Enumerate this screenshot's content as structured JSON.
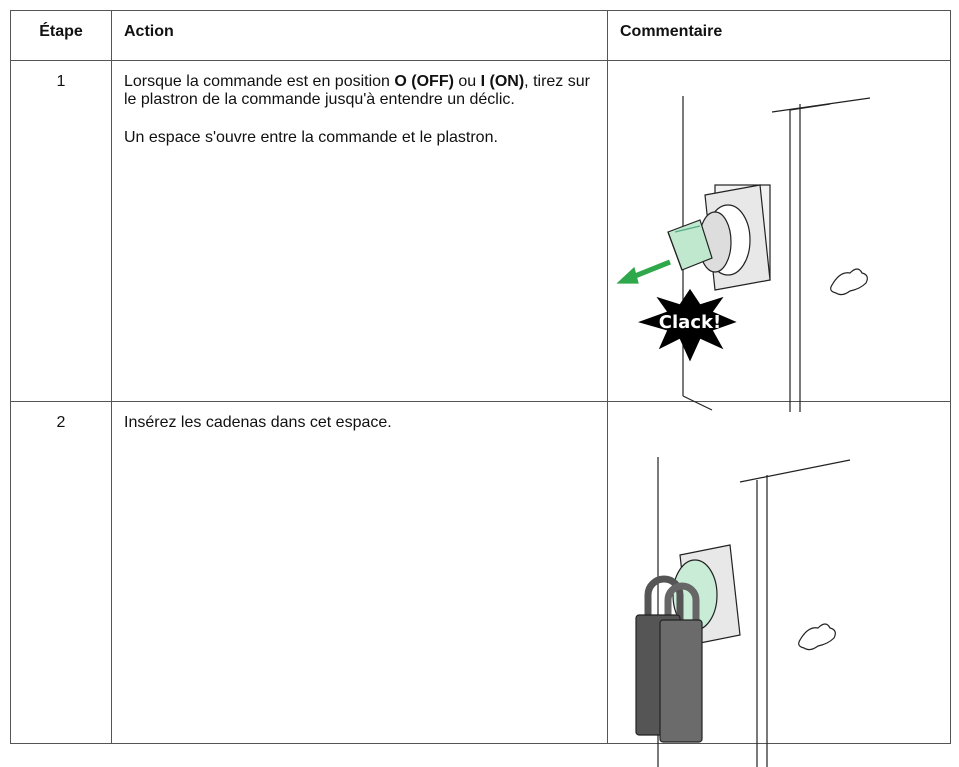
{
  "table": {
    "header": [
      "Étape",
      "Action",
      "Commentaire"
    ],
    "rows": [
      {
        "step": "1",
        "action": [
          [
            {
              "text": "Lorsque la commande est en position ",
              "bold": false
            },
            {
              "text": "O (OFF)",
              "bold": true
            },
            {
              "text": " ou ",
              "bold": false
            },
            {
              "text": "I (ON)",
              "bold": true
            },
            {
              "text": ", tirez sur le plastron de la commande jusqu'à entendre un déclic.",
              "bold": false
            }
          ],
          [
            {
              "text": "Un espace s'ouvre entre la commande et le plastron.",
              "bold": false
            }
          ]
        ],
        "illustration_label": "Clack!"
      },
      {
        "step": "2",
        "action": [
          [
            {
              "text": "Insérez les cadenas dans cet espace.",
              "bold": false
            }
          ]
        ]
      }
    ]
  }
}
